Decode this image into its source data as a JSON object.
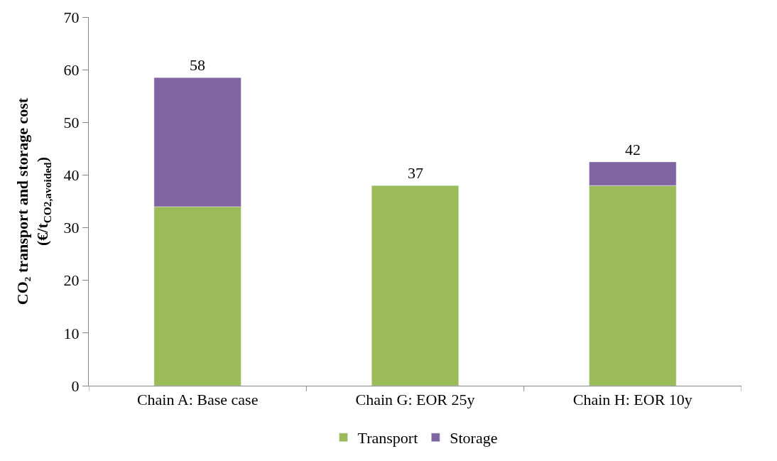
{
  "chart_data": {
    "type": "bar",
    "stacked": true,
    "ylabel": "CO₂ transport and storage cost\n(€/t$_{CO2,avoided}$)",
    "categories": [
      "Chain A: Base case",
      "Chain G: EOR 25y",
      "Chain H: EOR 10y"
    ],
    "series": [
      {
        "name": "Transport",
        "color": "#9bbb59",
        "values": [
          34,
          38,
          38
        ]
      },
      {
        "name": "Storage",
        "color": "#8064a2",
        "values": [
          24.5,
          null,
          4.5
        ]
      }
    ],
    "totals": [
      "58",
      "37",
      "42"
    ],
    "ylim": [
      0,
      70
    ],
    "yticks": [
      0,
      10,
      20,
      30,
      40,
      50,
      60,
      70
    ],
    "grid": false,
    "legend": "bottom"
  }
}
